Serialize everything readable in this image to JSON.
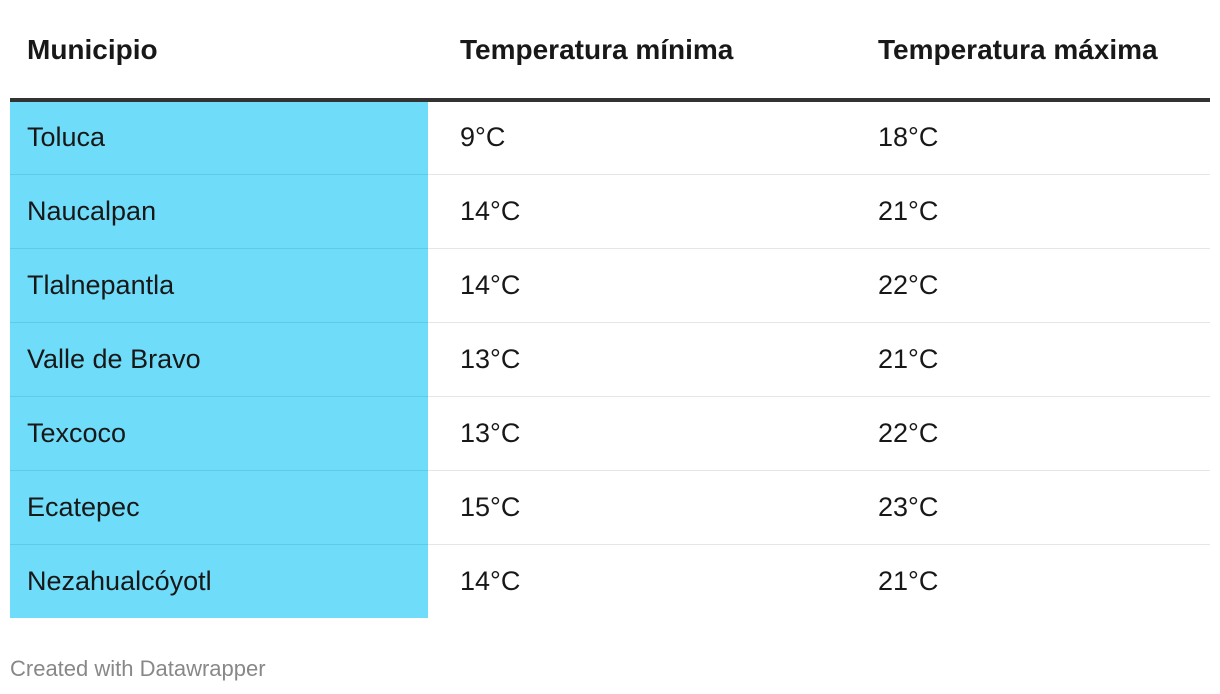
{
  "table": {
    "header": [
      "Municipio",
      "Temperatura mínima",
      "Temperatura máxima"
    ],
    "rows": [
      [
        "Toluca",
        "9°C",
        "18°C"
      ],
      [
        "Naucalpan",
        "14°C",
        "21°C"
      ],
      [
        "Tlalnepantla",
        "14°C",
        "22°C"
      ],
      [
        "Valle de Bravo",
        "13°C",
        "21°C"
      ],
      [
        "Texcoco",
        "13°C",
        "22°C"
      ],
      [
        "Ecatepec",
        "15°C",
        "23°C"
      ],
      [
        "Nezahualcóyotl",
        "14°C",
        "21°C"
      ]
    ]
  },
  "footer": "Created with Datawrapper"
}
